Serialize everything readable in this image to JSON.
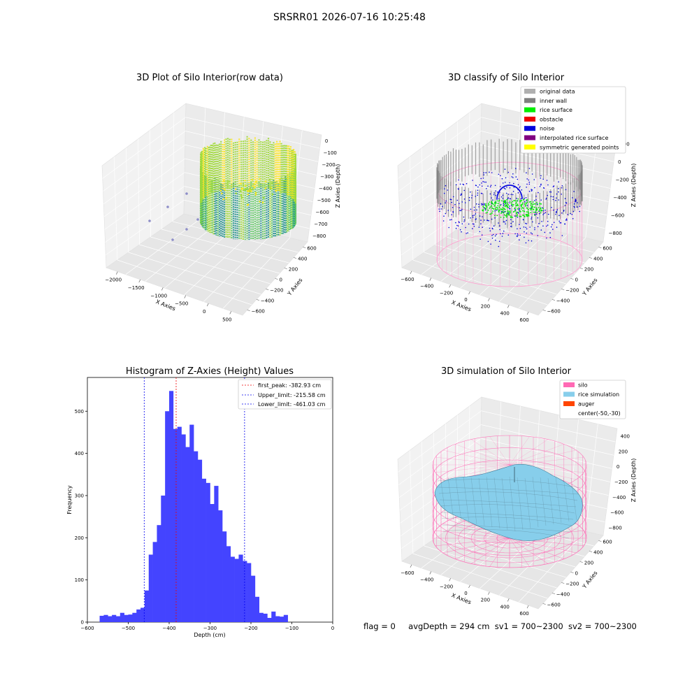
{
  "suptitle": "SRSRR01 2026-07-16 10:25:48",
  "chart_data": [
    {
      "type": "scatter",
      "title": "3D Plot of Silo Interior(row data)",
      "xlabel": "X Axies",
      "ylabel": "Y Axies",
      "zlabel": "Z Axies (Depth)",
      "x_ticks": [
        "−2000",
        "−1500",
        "−1000",
        "−500",
        "0",
        "500"
      ],
      "y_ticks": [
        "600",
        "400",
        "200",
        "0",
        "−200",
        "−400",
        "−600"
      ],
      "z_ticks": [
        "0",
        "−100",
        "−200",
        "−300",
        "−400",
        "−500",
        "−600",
        "−700",
        "−800"
      ],
      "colormap": "viridis",
      "outlier_color": "#8e8ec8"
    },
    {
      "type": "scatter",
      "title": "3D classify of Silo Interior",
      "xlabel": "X Axies",
      "ylabel": "Y Axies",
      "zlabel": "Z Axies (Depth)",
      "x_ticks": [
        "−600",
        "−400",
        "−200",
        "0",
        "200",
        "400",
        "600"
      ],
      "y_ticks": [
        "600",
        "400",
        "200",
        "0",
        "−200",
        "−400",
        "−600"
      ],
      "z_ticks": [
        "200",
        "0",
        "−200",
        "−400",
        "−600",
        "−800"
      ],
      "legend": [
        {
          "label": "original data",
          "color": "#b0b0b0"
        },
        {
          "label": "inner wall",
          "color": "#808080"
        },
        {
          "label": "rice surface",
          "color": "#00ee00"
        },
        {
          "label": "obstacle",
          "color": "#ee0000"
        },
        {
          "label": "noise",
          "color": "#0000dd"
        },
        {
          "label": "interpolated rice surface",
          "color": "#800080"
        },
        {
          "label": "symmetric generated points",
          "color": "#ffff00"
        }
      ],
      "legend_position": "top-right",
      "silo_color": "#ff9fd0"
    },
    {
      "type": "bar",
      "title": "Histogram of Z-Axies (Height) Values",
      "xlabel": "Depth (cm)",
      "ylabel": "Frequency",
      "xlim": [
        -600,
        0
      ],
      "ylim": [
        0,
        580
      ],
      "x_ticks": [
        -600,
        -500,
        -400,
        -300,
        -200,
        -100,
        0
      ],
      "y_ticks": [
        0,
        100,
        200,
        300,
        400,
        500
      ],
      "bin_start": -570,
      "bin_width": 10,
      "values": [
        15,
        17,
        14,
        17,
        14,
        22,
        17,
        18,
        22,
        30,
        34,
        75,
        160,
        190,
        230,
        300,
        500,
        548,
        458,
        463,
        445,
        415,
        468,
        405,
        385,
        340,
        330,
        280,
        323,
        265,
        215,
        180,
        155,
        150,
        160,
        145,
        140,
        110,
        60,
        22,
        20,
        10,
        25,
        14,
        13,
        17
      ],
      "bar_color": "#4444ff",
      "lines": [
        {
          "label": "first_peak: -382.93 cm",
          "x": -382.93,
          "color": "#ee0000"
        },
        {
          "label": "Upper_limit: -215.58 cm",
          "x": -215.58,
          "color": "#0000ee"
        },
        {
          "label": "Lower_limit: -461.03 cm",
          "x": -461.03,
          "color": "#0000ee"
        }
      ],
      "legend_position": "top-right"
    },
    {
      "type": "surface",
      "title": "3D simulation of Silo Interior",
      "xlabel": "X Axies",
      "ylabel": "Y Axies",
      "zlabel": "Z Axies (Depth)",
      "x_ticks": [
        "−600",
        "−400",
        "−200",
        "0",
        "200",
        "400",
        "600"
      ],
      "y_ticks": [
        "600",
        "400",
        "200",
        "0",
        "−200",
        "−400",
        "−600"
      ],
      "z_ticks": [
        "400",
        "200",
        "0",
        "−200",
        "−400",
        "−600",
        "−800"
      ],
      "legend": [
        {
          "label": "silo",
          "color": "#ff69b4"
        },
        {
          "label": "rice simulation",
          "color": "#87ceeb"
        },
        {
          "label": "auger",
          "color": "#ff4500"
        },
        {
          "label": "center(-50,-30)",
          "color": ""
        }
      ],
      "legend_position": "top-right",
      "silo_color": "#ff69b4",
      "surface_color": "#87ceeb"
    }
  ],
  "status": {
    "flag": "flag = 0",
    "avg_depth": "avgDepth = 294 cm",
    "sv1": "sv1 = 700~2300",
    "sv2": "sv2 = 700~2300"
  }
}
